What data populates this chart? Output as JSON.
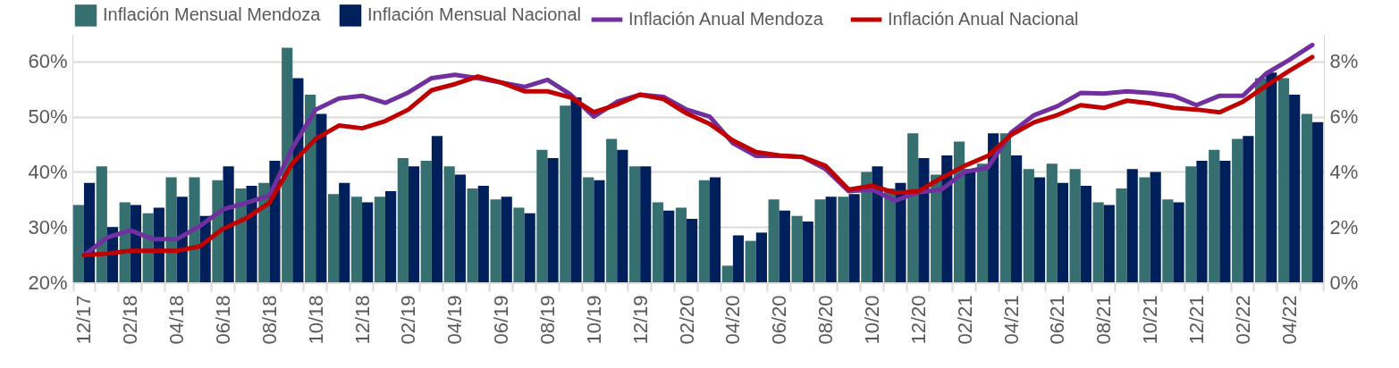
{
  "chart_data": {
    "type": "bar",
    "categories": [
      "12/17",
      null,
      "02/18",
      null,
      "04/18",
      null,
      "06/18",
      null,
      "08/18",
      null,
      "10/18",
      null,
      "12/18",
      null,
      "02/19",
      null,
      "04/19",
      null,
      "06/19",
      null,
      "08/19",
      null,
      "10/19",
      null,
      "12/19",
      null,
      "02/20",
      null,
      "04/20",
      null,
      "06/20",
      null,
      "08/20",
      null,
      "10/20",
      null,
      "12/20",
      null,
      "02/21",
      null,
      "04/21",
      null,
      "06/21",
      null,
      "08/21",
      null,
      "10/21",
      null,
      "12/21",
      null,
      "02/22",
      null,
      "04/22",
      null
    ],
    "series": [
      {
        "name": "Inflación Mensual Mendoza",
        "color": "#356f70",
        "axis": "y2",
        "values": [
          2.8,
          4.2,
          2.9,
          2.5,
          3.8,
          3.8,
          3.7,
          3.4,
          3.6,
          8.5,
          6.8,
          3.2,
          3.1,
          3.1,
          4.5,
          4.4,
          4.2,
          3.4,
          3.0,
          2.7,
          4.8,
          6.4,
          3.8,
          5.2,
          4.2,
          2.9,
          2.7,
          3.7,
          0.6,
          1.5,
          3.0,
          2.4,
          3.0,
          3.1,
          4.0,
          3.4,
          5.4,
          3.9,
          5.1,
          4.3,
          5.4,
          4.1,
          4.3,
          4.1,
          2.9,
          3.4,
          3.8,
          3.0,
          4.2,
          4.8,
          5.2,
          7.4,
          7.4,
          6.1
        ]
      },
      {
        "name": "Inflación Mensual Nacional",
        "color": "#00205b",
        "axis": "y2",
        "values": [
          3.6,
          2.0,
          2.8,
          2.7,
          3.1,
          2.4,
          4.2,
          3.5,
          4.4,
          7.4,
          6.1,
          3.6,
          2.9,
          3.3,
          4.2,
          5.3,
          3.9,
          3.5,
          3.1,
          2.5,
          4.5,
          6.7,
          3.7,
          4.8,
          4.2,
          2.6,
          2.3,
          3.8,
          1.7,
          1.8,
          2.6,
          2.2,
          3.1,
          3.2,
          4.2,
          3.6,
          4.5,
          4.6,
          4.1,
          5.4,
          4.6,
          3.8,
          3.6,
          3.5,
          2.8,
          4.1,
          4.0,
          2.9,
          4.4,
          4.4,
          5.3,
          7.6,
          6.8,
          5.8
        ]
      },
      {
        "name": "Inflación Anual Mendoza",
        "color": "#7030a0",
        "type": "line",
        "axis": "y",
        "values": [
          24.9,
          28.1,
          29.4,
          27.8,
          27.8,
          30.2,
          33.2,
          34.4,
          35.7,
          44.4,
          51.3,
          53.3,
          53.8,
          52.5,
          54.4,
          57.0,
          57.6,
          57.0,
          56.2,
          55.4,
          56.7,
          54.0,
          50.0,
          52.7,
          54.0,
          53.6,
          51.3,
          50.0,
          45.2,
          42.9,
          42.9,
          42.7,
          40.5,
          36.5,
          36.8,
          34.8,
          36.3,
          36.8,
          40.0,
          40.8,
          47.1,
          50.3,
          51.9,
          54.3,
          54.2,
          54.6,
          54.3,
          53.8,
          52.1,
          53.8,
          53.8,
          57.8,
          60.3,
          63.0
        ]
      },
      {
        "name": "Inflación Anual Nacional",
        "color": "#c00000",
        "type": "line",
        "axis": "y",
        "values": [
          24.9,
          25.2,
          25.7,
          25.7,
          25.7,
          26.5,
          29.7,
          31.6,
          34.4,
          41.6,
          46.0,
          48.4,
          47.9,
          49.2,
          51.3,
          54.8,
          55.9,
          57.3,
          56.2,
          54.6,
          54.6,
          53.5,
          50.8,
          52.2,
          54.0,
          53.2,
          50.6,
          48.7,
          45.7,
          43.6,
          43.0,
          42.7,
          41.1,
          36.8,
          37.5,
          36.2,
          36.5,
          38.9,
          41.1,
          42.9,
          46.7,
          49.0,
          50.3,
          52.1,
          51.6,
          52.9,
          52.4,
          51.6,
          51.3,
          50.8,
          52.7,
          55.6,
          58.3,
          60.8
        ]
      }
    ],
    "ylim": [
      20,
      65
    ],
    "yticks": [
      {
        "value": 20,
        "label": "20%"
      },
      {
        "value": 30,
        "label": "30%"
      },
      {
        "value": 40,
        "label": "40%"
      },
      {
        "value": 50,
        "label": "50%"
      },
      {
        "value": 60,
        "label": "60%"
      }
    ],
    "y2lim": [
      0,
      9
    ],
    "y2ticks": [
      {
        "value": 0,
        "label": "0%"
      },
      {
        "value": 2,
        "label": "2%"
      },
      {
        "value": 4,
        "label": "4%"
      },
      {
        "value": 6,
        "label": "6%"
      },
      {
        "value": 8,
        "label": "8%"
      }
    ],
    "grid": "y",
    "legend": "top",
    "marker": "none",
    "line_style": "solid"
  }
}
